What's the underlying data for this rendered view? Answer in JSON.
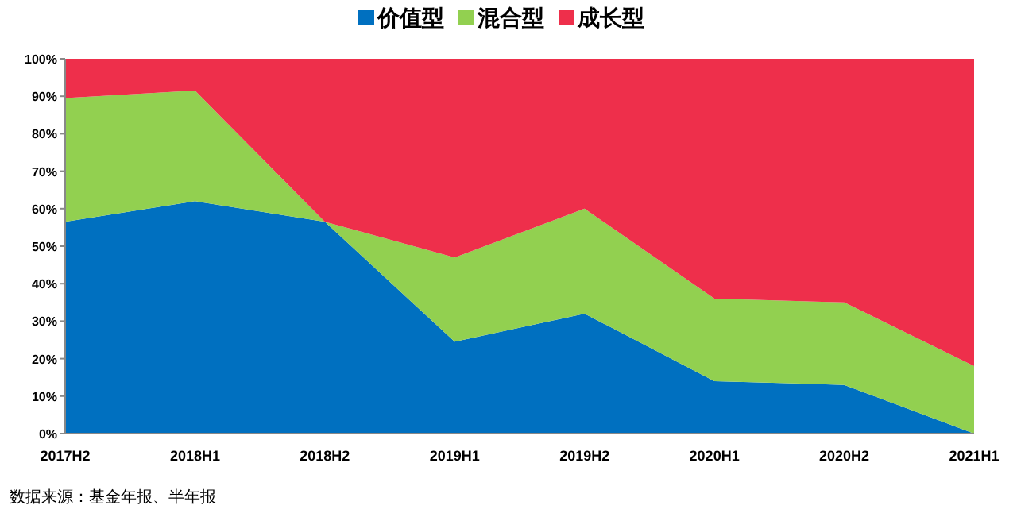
{
  "chart_data": {
    "type": "area",
    "stacked": true,
    "legend": "top",
    "categories": [
      "2017H2",
      "2018H1",
      "2018H2",
      "2019H1",
      "2019H2",
      "2020H1",
      "2020H2",
      "2021H1"
    ],
    "series": [
      {
        "name": "价值型",
        "color": "#0070c0",
        "values": [
          56.5,
          62,
          56.5,
          24.5,
          32,
          14,
          13,
          0
        ]
      },
      {
        "name": "混合型",
        "color": "#92d050",
        "values": [
          33,
          29.5,
          0,
          22.5,
          28,
          22,
          22,
          18
        ]
      },
      {
        "name": "成长型",
        "color": "#ee2f4b",
        "values": [
          10.5,
          8.5,
          43.5,
          53,
          40,
          64,
          65,
          82
        ]
      }
    ],
    "ylim": [
      0,
      100
    ],
    "yticks": [
      {
        "value": 0,
        "label": "0%"
      },
      {
        "value": 10,
        "label": "10%"
      },
      {
        "value": 20,
        "label": "20%"
      },
      {
        "value": 30,
        "label": "30%"
      },
      {
        "value": 40,
        "label": "40%"
      },
      {
        "value": 50,
        "label": "50%"
      },
      {
        "value": 60,
        "label": "60%"
      },
      {
        "value": 70,
        "label": "70%"
      },
      {
        "value": 80,
        "label": "80%"
      },
      {
        "value": 90,
        "label": "90%"
      },
      {
        "value": 100,
        "label": "100%"
      }
    ],
    "annotations": [
      "数据来源：基金年报、半年报"
    ]
  }
}
